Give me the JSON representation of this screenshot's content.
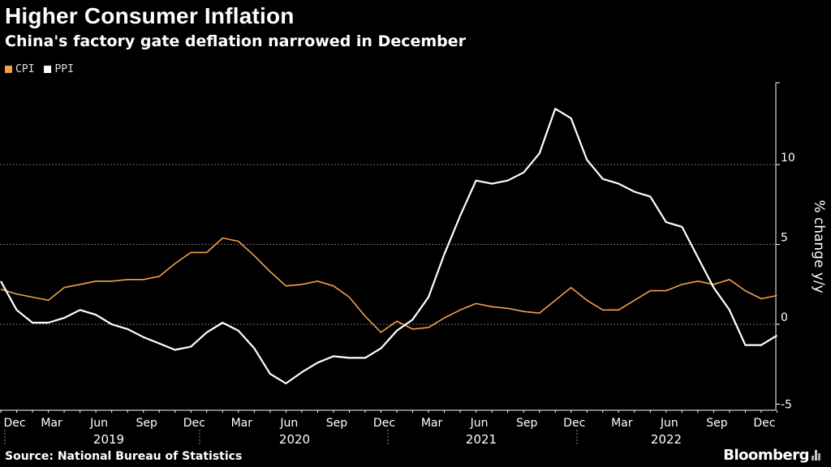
{
  "header": {
    "title": "Higher Consumer Inflation",
    "subtitle": "China's factory gate deflation narrowed in December"
  },
  "legend": [
    {
      "label": "CPI",
      "color": "#F2A149"
    },
    {
      "label": "PPI",
      "color": "#FFFFFF"
    }
  ],
  "footer": {
    "source": "Source: National Bureau of Statistics",
    "brand": "Bloomberg"
  },
  "chart_data": {
    "type": "line",
    "title": "Higher Consumer Inflation",
    "subtitle": "China's factory gate deflation narrowed in December",
    "xlabel": "",
    "ylabel": "% change y/y",
    "ylim": [
      -5,
      15
    ],
    "yticks": [
      -5,
      0,
      5,
      10
    ],
    "grid": "horizontal dashed",
    "legend_position": "top-left",
    "x_month_labels": [
      "Dec",
      "Mar",
      "Jun",
      "Sep",
      "Dec",
      "Mar",
      "Jun",
      "Sep",
      "Dec",
      "Mar",
      "Jun",
      "Sep",
      "Dec",
      "Mar",
      "Jun",
      "Sep",
      "Dec"
    ],
    "x_month_label_index": [
      0,
      3,
      6,
      9,
      12,
      15,
      18,
      21,
      24,
      27,
      30,
      33,
      36,
      39,
      42,
      45,
      48
    ],
    "year_labels": [
      "2019",
      "2020",
      "2021",
      "2022"
    ],
    "x": [
      "2018-11",
      "2018-12",
      "2019-01",
      "2019-02",
      "2019-03",
      "2019-04",
      "2019-05",
      "2019-06",
      "2019-07",
      "2019-08",
      "2019-09",
      "2019-10",
      "2019-11",
      "2019-12",
      "2020-01",
      "2020-02",
      "2020-03",
      "2020-04",
      "2020-05",
      "2020-06",
      "2020-07",
      "2020-08",
      "2020-09",
      "2020-10",
      "2020-11",
      "2020-12",
      "2021-01",
      "2021-02",
      "2021-03",
      "2021-04",
      "2021-05",
      "2021-06",
      "2021-07",
      "2021-08",
      "2021-09",
      "2021-10",
      "2021-11",
      "2021-12",
      "2022-01",
      "2022-02",
      "2022-03",
      "2022-04",
      "2022-05",
      "2022-06",
      "2022-07",
      "2022-08",
      "2022-09",
      "2022-10",
      "2022-11",
      "2022-12"
    ],
    "series": [
      {
        "name": "CPI",
        "color": "#F2A149",
        "values": [
          2.2,
          1.9,
          1.7,
          1.5,
          2.3,
          2.5,
          2.7,
          2.7,
          2.8,
          2.8,
          3.0,
          3.8,
          4.5,
          4.5,
          5.4,
          5.2,
          4.3,
          3.3,
          2.4,
          2.5,
          2.7,
          2.4,
          1.7,
          0.5,
          -0.5,
          0.2,
          -0.3,
          -0.2,
          0.4,
          0.9,
          1.3,
          1.1,
          1.0,
          0.8,
          0.7,
          1.5,
          2.3,
          1.5,
          0.9,
          0.9,
          1.5,
          2.1,
          2.1,
          2.5,
          2.7,
          2.5,
          2.8,
          2.1,
          1.6,
          1.8
        ]
      },
      {
        "name": "PPI",
        "color": "#FFFFFF",
        "values": [
          2.7,
          0.9,
          0.1,
          0.1,
          0.4,
          0.9,
          0.6,
          0.0,
          -0.3,
          -0.8,
          -1.2,
          -1.6,
          -1.4,
          -0.5,
          0.1,
          -0.4,
          -1.5,
          -3.1,
          -3.7,
          -3.0,
          -2.4,
          -2.0,
          -2.1,
          -2.1,
          -1.5,
          -0.4,
          0.3,
          1.7,
          4.4,
          6.8,
          9.0,
          8.8,
          9.0,
          9.5,
          10.7,
          13.5,
          12.9,
          10.3,
          9.1,
          8.8,
          8.3,
          8.0,
          6.4,
          6.1,
          4.2,
          2.3,
          0.9,
          -1.3,
          -1.3,
          -0.7
        ]
      }
    ]
  }
}
